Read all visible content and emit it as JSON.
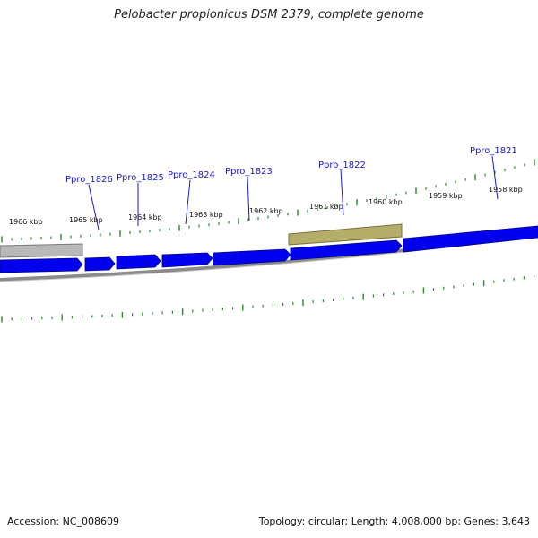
{
  "title": "Pelobacter propionicus DSM 2379, complete genome",
  "footer": {
    "accession": "Accession: NC_008609",
    "summary": "Topology: circular; Length: 4,008,000 bp; Genes: 3,643"
  },
  "colors": {
    "cds": "#0000ee",
    "cds_edge": "#000088",
    "feature_gray": "#b8b8b8",
    "feature_olive": "#b5ae6a",
    "backbone": "#8a8a8a",
    "ticks": "#2a8a2a",
    "labels": "#1a1acc"
  },
  "kbp_labels": [
    "1966 kbp",
    "1965 kbp",
    "1964 kbp",
    "1963 kbp",
    "1962 kbp",
    "1961 kbp",
    "1960 kbp",
    "1959 kbp",
    "1958 kbp"
  ],
  "genes": [
    "Ppro_1826",
    "Ppro_1825",
    "Ppro_1824",
    "Ppro_1823",
    "Ppro_1822",
    "Ppro_1821"
  ]
}
